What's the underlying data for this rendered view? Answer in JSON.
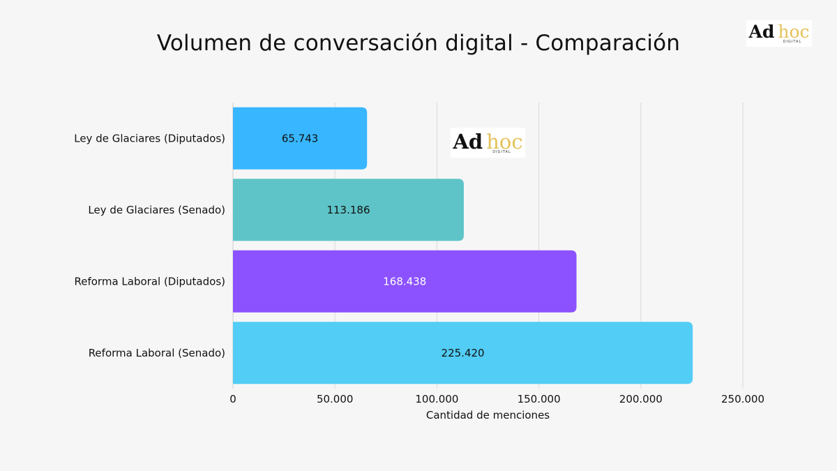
{
  "logo": {
    "ad": "Ad",
    "hoc": "hoc",
    "sub": "DIGITAL"
  },
  "chart_data": {
    "type": "bar",
    "orientation": "horizontal",
    "title": "Volumen de conversación digital - Comparación",
    "xlabel": "Cantidad de menciones",
    "ylabel": "",
    "categories": [
      "Ley de Glaciares (Diputados)",
      "Ley de Glaciares (Senado)",
      "Reforma Laboral (Diputados)",
      "Reforma Laboral (Senado)"
    ],
    "values": [
      65743,
      113186,
      168438,
      225420
    ],
    "value_labels": [
      "65.743",
      "113.186",
      "168.438",
      "225.420"
    ],
    "bar_colors": [
      "#38b6ff",
      "#5ec4c8",
      "#8c52ff",
      "#52cdf5"
    ],
    "label_colors": [
      "#111111",
      "#111111",
      "#ffffff",
      "#111111"
    ],
    "xlim": [
      0,
      250000
    ],
    "xticks": [
      0,
      50000,
      100000,
      150000,
      200000,
      250000
    ],
    "xtick_labels": [
      "0",
      "50.000",
      "100.000",
      "150.000",
      "200.000",
      "250.000"
    ],
    "grid": true,
    "gridline_color": "#d9d9d9"
  }
}
